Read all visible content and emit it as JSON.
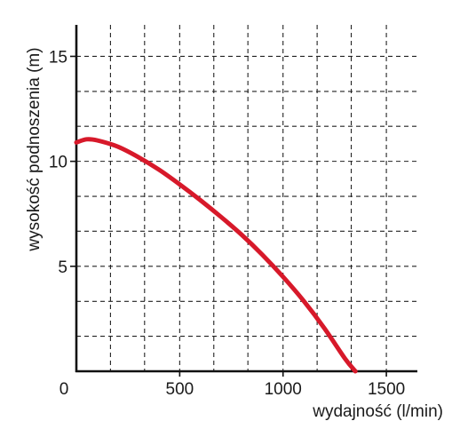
{
  "chart_data": {
    "type": "line",
    "title": "",
    "xlabel": "wydajność (l/min)",
    "ylabel": "wysokość podnoszenia (m)",
    "origin_label": "0",
    "xlim": [
      0,
      1650
    ],
    "ylim": [
      0,
      16.5
    ],
    "x_ticks": [
      500,
      1000,
      1500
    ],
    "y_ticks": [
      5,
      10,
      15
    ],
    "x_grid": [
      165,
      330,
      500,
      665,
      830,
      1000,
      1165,
      1330,
      1500
    ],
    "y_grid": [
      1.67,
      3.33,
      5,
      6.67,
      8.33,
      10,
      11.67,
      13.33,
      15
    ],
    "grid": true,
    "legend": "none",
    "series": [
      {
        "color": "#d7192a",
        "x": [
          0,
          50,
          100,
          200,
          300,
          400,
          500,
          600,
          700,
          800,
          900,
          1000,
          1100,
          1200,
          1300,
          1350
        ],
        "y": [
          10.9,
          11.05,
          11.0,
          10.7,
          10.2,
          9.6,
          8.9,
          8.15,
          7.35,
          6.5,
          5.55,
          4.5,
          3.35,
          2.05,
          0.6,
          0.0
        ]
      }
    ]
  }
}
